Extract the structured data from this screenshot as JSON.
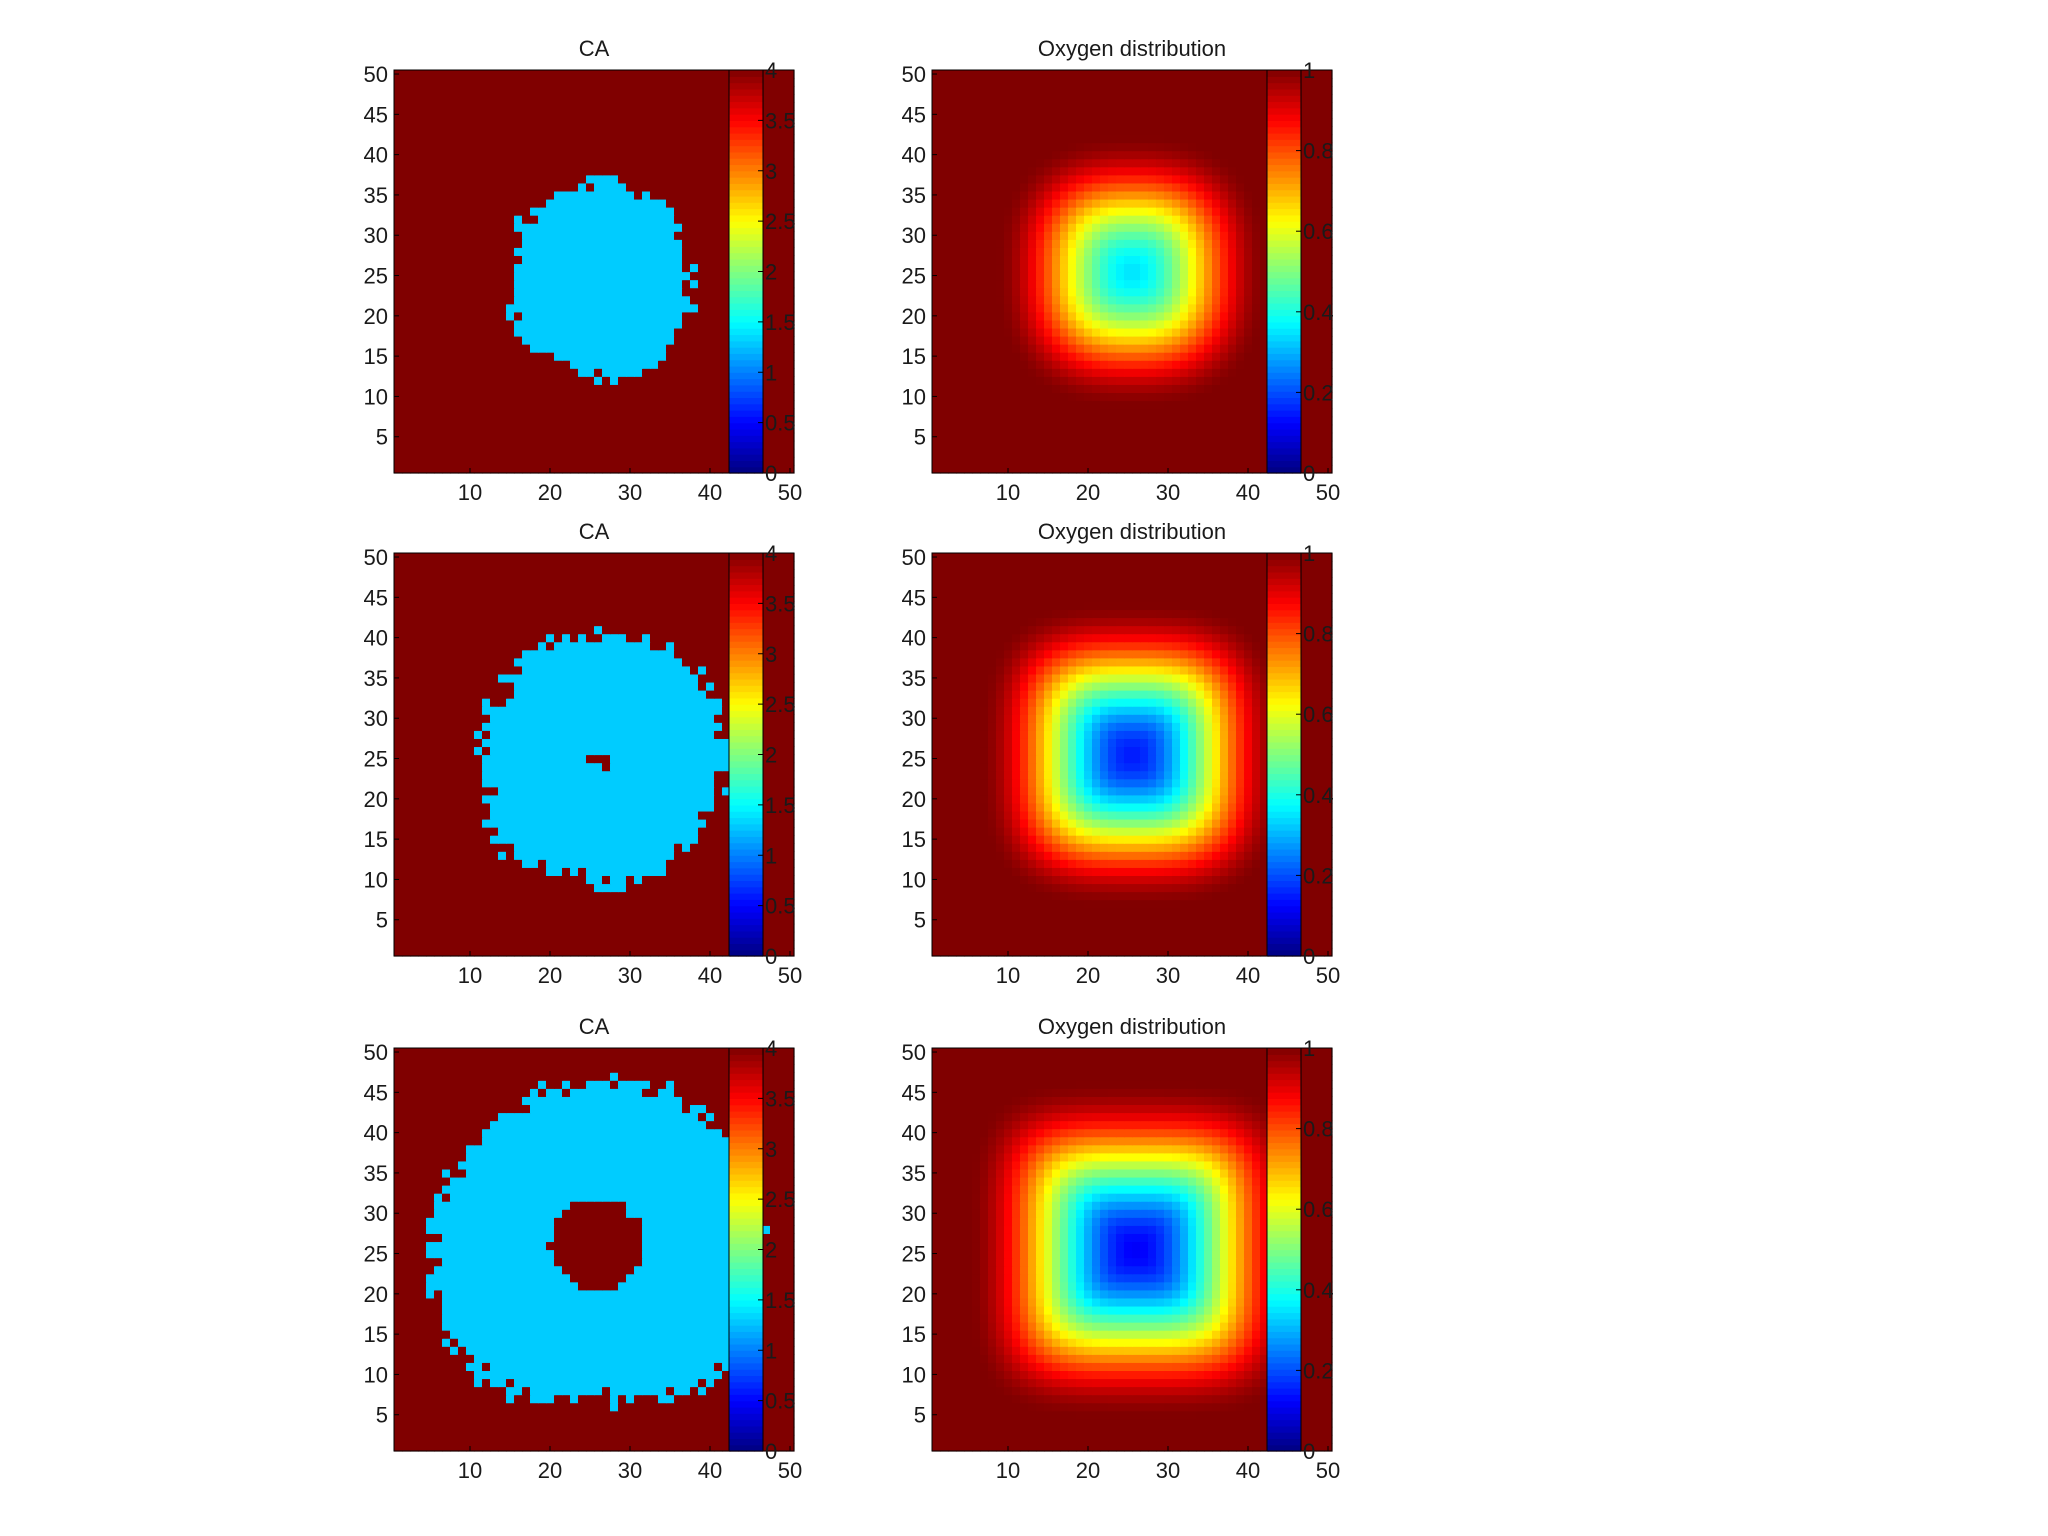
{
  "colors": {
    "background": "#ffffff",
    "tumor_cells": "#0a8cff",
    "empty_space": "#7f0f00",
    "colormap": "jet"
  },
  "chart_data": [
    {
      "id": "ca-1",
      "type": "heatmap",
      "title": "CA",
      "grid_size": [
        50,
        50
      ],
      "xlim": [
        0.5,
        50.5
      ],
      "ylim": [
        0.5,
        50.5
      ],
      "xticks": [
        10,
        20,
        30,
        40,
        50
      ],
      "yticks": [
        5,
        10,
        15,
        20,
        25,
        30,
        35,
        40,
        45,
        50
      ],
      "colorbar": {
        "range": [
          0,
          4
        ],
        "ticks": [
          0,
          0.5,
          1,
          1.5,
          2,
          2.5,
          3,
          3.5,
          4
        ]
      },
      "field": {
        "kind": "ca",
        "background_value": 4,
        "cell_value": 1.3,
        "center": [
          26.5,
          24.5
        ],
        "outer_radius": 11.5,
        "roughness": 1.8,
        "core_value": 4,
        "core_radius": 0,
        "seed": 11
      }
    },
    {
      "id": "oxygen-1",
      "type": "heatmap",
      "title": "Oxygen distribution",
      "grid_size": [
        50,
        50
      ],
      "xlim": [
        0.5,
        50.5
      ],
      "ylim": [
        0.5,
        50.5
      ],
      "xticks": [
        10,
        20,
        30,
        40,
        50
      ],
      "yticks": [
        5,
        10,
        15,
        20,
        25,
        30,
        35,
        40,
        45,
        50
      ],
      "colorbar": {
        "range": [
          0,
          1
        ],
        "ticks": [
          0,
          0.2,
          0.4,
          0.6,
          0.8,
          1
        ]
      },
      "field": {
        "kind": "oxygen",
        "center": [
          25.5,
          25.5
        ],
        "min_value": 0.35,
        "max_value": 1.0,
        "radius": 17,
        "squareness": 2.6
      }
    },
    {
      "id": "ca-2",
      "type": "heatmap",
      "title": "CA",
      "grid_size": [
        50,
        50
      ],
      "xlim": [
        0.5,
        50.5
      ],
      "ylim": [
        0.5,
        50.5
      ],
      "xticks": [
        10,
        20,
        30,
        40,
        50
      ],
      "yticks": [
        5,
        10,
        15,
        20,
        25,
        30,
        35,
        40,
        45,
        50
      ],
      "colorbar": {
        "range": [
          0,
          4
        ],
        "ticks": [
          0,
          0.5,
          1,
          1.5,
          2,
          2.5,
          3,
          3.5,
          4
        ]
      },
      "field": {
        "kind": "ca",
        "background_value": 4,
        "cell_value": 1.3,
        "center": [
          26.5,
          25
        ],
        "outer_radius": 15.5,
        "roughness": 1.8,
        "core_value": 4,
        "core_radius": 1.2,
        "seed": 23
      }
    },
    {
      "id": "oxygen-2",
      "type": "heatmap",
      "title": "Oxygen distribution",
      "grid_size": [
        50,
        50
      ],
      "xlim": [
        0.5,
        50.5
      ],
      "ylim": [
        0.5,
        50.5
      ],
      "xticks": [
        10,
        20,
        30,
        40,
        50
      ],
      "yticks": [
        5,
        10,
        15,
        20,
        25,
        30,
        35,
        40,
        45,
        50
      ],
      "colorbar": {
        "range": [
          0,
          1
        ],
        "ticks": [
          0,
          0.2,
          0.4,
          0.6,
          0.8,
          1
        ]
      },
      "field": {
        "kind": "oxygen",
        "center": [
          25.5,
          25.5
        ],
        "min_value": 0.15,
        "max_value": 1.0,
        "radius": 19,
        "squareness": 3.2
      }
    },
    {
      "id": "ca-3",
      "type": "heatmap",
      "title": "CA",
      "grid_size": [
        50,
        50
      ],
      "xlim": [
        0.5,
        50.5
      ],
      "ylim": [
        0.5,
        50.5
      ],
      "xticks": [
        10,
        20,
        30,
        40,
        50
      ],
      "yticks": [
        5,
        10,
        15,
        20,
        25,
        30,
        35,
        40,
        45,
        50
      ],
      "colorbar": {
        "range": [
          0,
          4
        ],
        "ticks": [
          0,
          0.5,
          1,
          1.5,
          2,
          2.5,
          3,
          3.5,
          4
        ]
      },
      "field": {
        "kind": "ca",
        "background_value": 4,
        "cell_value": 1.3,
        "center": [
          26,
          26
        ],
        "outer_radius": 20.5,
        "roughness": 2.0,
        "core_value": 4,
        "core_radius": 5.8,
        "seed": 37
      }
    },
    {
      "id": "oxygen-3",
      "type": "heatmap",
      "title": "Oxygen distribution",
      "grid_size": [
        50,
        50
      ],
      "xlim": [
        0.5,
        50.5
      ],
      "ylim": [
        0.5,
        50.5
      ],
      "xticks": [
        10,
        20,
        30,
        40,
        50
      ],
      "yticks": [
        5,
        10,
        15,
        20,
        25,
        30,
        35,
        40,
        45,
        50
      ],
      "colorbar": {
        "range": [
          0,
          1
        ],
        "ticks": [
          0,
          0.2,
          0.4,
          0.6,
          0.8,
          1
        ]
      },
      "field": {
        "kind": "oxygen",
        "center": [
          26,
          25.5
        ],
        "min_value": 0.12,
        "max_value": 1.0,
        "radius": 21,
        "squareness": 4.0
      }
    }
  ]
}
